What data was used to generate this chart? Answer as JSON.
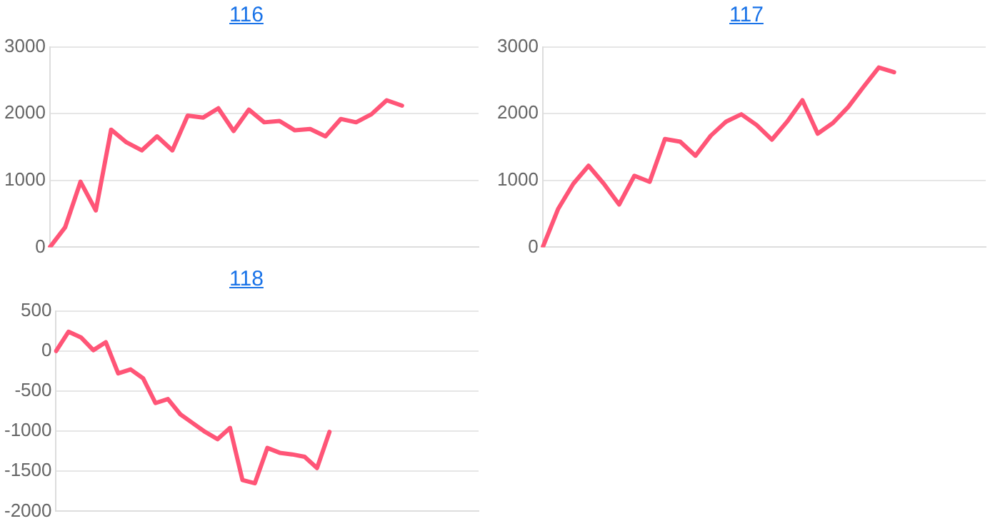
{
  "chart_data": [
    {
      "type": "line",
      "title": "116",
      "categories": [
        null,
        null,
        null,
        null,
        null,
        null,
        null,
        null,
        null,
        null,
        null,
        null,
        null,
        null,
        null,
        null,
        null,
        null,
        null,
        null,
        null,
        null,
        null,
        null,
        null,
        null,
        null,
        null,
        null
      ],
      "series": [
        {
          "color": "#ff5577",
          "values": [
            0,
            300,
            980,
            550,
            1760,
            1570,
            1450,
            1660,
            1450,
            1970,
            1940,
            2080,
            1740,
            2060,
            1870,
            1890,
            1750,
            1770,
            1660,
            1920,
            1870,
            1990,
            2200,
            2120,
            null,
            null,
            null,
            null,
            null
          ]
        }
      ],
      "ylim": [
        0,
        3000
      ],
      "yticks": [
        0,
        1000,
        2000,
        3000
      ],
      "grid": "y",
      "tick_labels": "y",
      "marker": "none",
      "line_style": "solid"
    },
    {
      "type": "line",
      "title": "117",
      "categories": [
        null,
        null,
        null,
        null,
        null,
        null,
        null,
        null,
        null,
        null,
        null,
        null,
        null,
        null,
        null,
        null,
        null,
        null,
        null,
        null,
        null,
        null,
        null,
        null,
        null,
        null,
        null,
        null,
        null,
        null
      ],
      "series": [
        {
          "color": "#ff5577",
          "values": [
            0,
            570,
            950,
            1220,
            950,
            640,
            1070,
            980,
            1620,
            1580,
            1370,
            1670,
            1880,
            1990,
            1830,
            1610,
            1880,
            2200,
            1700,
            1860,
            2100,
            2400,
            2690,
            2620,
            null,
            null,
            null,
            null,
            null,
            null
          ]
        }
      ],
      "ylim": [
        0,
        3000
      ],
      "yticks": [
        0,
        1000,
        2000,
        3000
      ],
      "grid": "y",
      "tick_labels": "y",
      "marker": "none",
      "line_style": "solid"
    },
    {
      "type": "line",
      "title": "118",
      "categories": [
        null,
        null,
        null,
        null,
        null,
        null,
        null,
        null,
        null,
        null,
        null,
        null,
        null,
        null,
        null,
        null,
        null,
        null,
        null,
        null,
        null,
        null,
        null,
        null,
        null,
        null,
        null,
        null,
        null,
        null,
        null,
        null,
        null,
        null,
        null
      ],
      "series": [
        {
          "color": "#ff5577",
          "values": [
            0,
            240,
            170,
            10,
            110,
            -280,
            -230,
            -340,
            -650,
            -600,
            -790,
            -900,
            -1010,
            -1100,
            -960,
            -1610,
            -1650,
            -1210,
            -1270,
            -1290,
            -1320,
            -1460,
            -1010,
            null,
            null,
            null,
            null,
            null,
            null,
            null,
            null,
            null,
            null,
            null,
            null
          ]
        }
      ],
      "ylim": [
        -2000,
        500
      ],
      "yticks": [
        -2000,
        -1500,
        -1000,
        -500,
        0,
        500
      ],
      "grid": "y",
      "tick_labels": "y",
      "marker": "none",
      "line_style": "solid"
    }
  ]
}
